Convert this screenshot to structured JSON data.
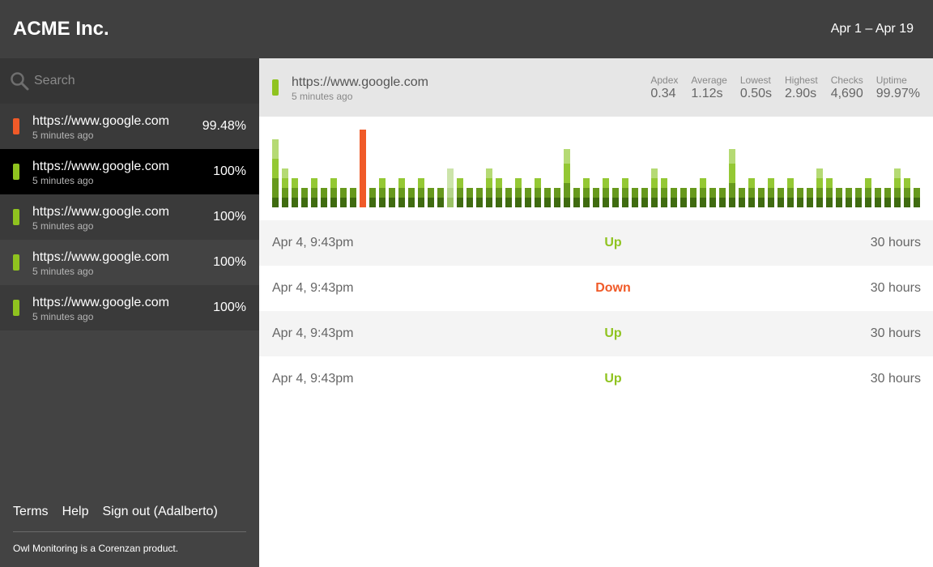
{
  "header": {
    "brand": "ACME Inc.",
    "date_range": "Apr 1 – Apr 19"
  },
  "search": {
    "placeholder": "Search",
    "value": ""
  },
  "sites": [
    {
      "url": "https://www.google.com",
      "updated": "5 minutes ago",
      "uptime": "99.48%",
      "status": "down",
      "active": false
    },
    {
      "url": "https://www.google.com",
      "updated": "5 minutes ago",
      "uptime": "100%",
      "status": "up",
      "active": true
    },
    {
      "url": "https://www.google.com",
      "updated": "5 minutes ago",
      "uptime": "100%",
      "status": "up",
      "active": false
    },
    {
      "url": "https://www.google.com",
      "updated": "5 minutes ago",
      "uptime": "100%",
      "status": "up",
      "active": false
    },
    {
      "url": "https://www.google.com",
      "updated": "5 minutes ago",
      "uptime": "100%",
      "status": "up",
      "active": false
    }
  ],
  "footer": {
    "links": {
      "terms": "Terms",
      "help": "Help",
      "signout": "Sign out (Adalberto)"
    },
    "note": "Owl Monitoring is a Corenzan product."
  },
  "detail": {
    "url": "https://www.google.com",
    "updated": "5 minutes ago",
    "status": "up",
    "stats": [
      {
        "label": "Apdex",
        "value": "0.34"
      },
      {
        "label": "Average",
        "value": "1.12s"
      },
      {
        "label": "Lowest",
        "value": "0.50s"
      },
      {
        "label": "Highest",
        "value": "2.90s"
      },
      {
        "label": "Checks",
        "value": "4,690"
      },
      {
        "label": "Uptime",
        "value": "99.97%"
      }
    ]
  },
  "events": [
    {
      "date": "Apr 4, 9:43pm",
      "status": "Up",
      "duration": "30 hours"
    },
    {
      "date": "Apr 4, 9:43pm",
      "status": "Down",
      "duration": "30 hours"
    },
    {
      "date": "Apr 4, 9:43pm",
      "status": "Up",
      "duration": "30 hours"
    },
    {
      "date": "Apr 4, 9:43pm",
      "status": "Up",
      "duration": "30 hours"
    }
  ],
  "colors": {
    "up": "#8fc31f",
    "down": "#f05a28",
    "segments": [
      "#3f6b10",
      "#67991d",
      "#94c834",
      "#b5da74"
    ],
    "faded": [
      "#9bc266",
      "#b4d48a",
      "#cce4aa",
      "#ddedc7"
    ]
  },
  "chart_data": {
    "type": "bar",
    "stacked": true,
    "grid": false,
    "legend": "none",
    "bars": [
      {
        "segments": [
          1,
          2,
          2,
          2
        ],
        "status": "up"
      },
      {
        "segments": [
          1,
          1,
          1,
          1
        ],
        "status": "up"
      },
      {
        "segments": [
          1,
          1,
          1
        ],
        "status": "up"
      },
      {
        "segments": [
          1,
          1
        ],
        "status": "up"
      },
      {
        "segments": [
          1,
          1,
          1
        ],
        "status": "up"
      },
      {
        "segments": [
          1,
          1
        ],
        "status": "up"
      },
      {
        "segments": [
          1,
          1,
          1
        ],
        "status": "up"
      },
      {
        "segments": [
          1,
          1
        ],
        "status": "up"
      },
      {
        "segments": [
          1,
          1
        ],
        "status": "up"
      },
      {
        "segments": [
          8
        ],
        "status": "down"
      },
      {
        "segments": [
          1,
          1
        ],
        "status": "up"
      },
      {
        "segments": [
          1,
          1,
          1
        ],
        "status": "up"
      },
      {
        "segments": [
          1,
          1
        ],
        "status": "up"
      },
      {
        "segments": [
          1,
          1,
          1
        ],
        "status": "up"
      },
      {
        "segments": [
          1,
          1
        ],
        "status": "up"
      },
      {
        "segments": [
          1,
          1,
          1
        ],
        "status": "up"
      },
      {
        "segments": [
          1,
          1
        ],
        "status": "up"
      },
      {
        "segments": [
          1,
          1
        ],
        "status": "up"
      },
      {
        "segments": [
          1,
          1,
          2
        ],
        "status": "faded"
      },
      {
        "segments": [
          1,
          1,
          1
        ],
        "status": "up"
      },
      {
        "segments": [
          1,
          1
        ],
        "status": "up"
      },
      {
        "segments": [
          1,
          1
        ],
        "status": "up"
      },
      {
        "segments": [
          1,
          1,
          1,
          1
        ],
        "status": "up"
      },
      {
        "segments": [
          1,
          1,
          1
        ],
        "status": "up"
      },
      {
        "segments": [
          1,
          1
        ],
        "status": "up"
      },
      {
        "segments": [
          1,
          1,
          1
        ],
        "status": "up"
      },
      {
        "segments": [
          1,
          1
        ],
        "status": "up"
      },
      {
        "segments": [
          1,
          1,
          1
        ],
        "status": "up"
      },
      {
        "segments": [
          1,
          1
        ],
        "status": "up"
      },
      {
        "segments": [
          1,
          1
        ],
        "status": "up"
      },
      {
        "segments": [
          1,
          1.5,
          2,
          1.5
        ],
        "status": "up"
      },
      {
        "segments": [
          1,
          1
        ],
        "status": "up"
      },
      {
        "segments": [
          1,
          1,
          1
        ],
        "status": "up"
      },
      {
        "segments": [
          1,
          1
        ],
        "status": "up"
      },
      {
        "segments": [
          1,
          1,
          1
        ],
        "status": "up"
      },
      {
        "segments": [
          1,
          1
        ],
        "status": "up"
      },
      {
        "segments": [
          1,
          1,
          1
        ],
        "status": "up"
      },
      {
        "segments": [
          1,
          1
        ],
        "status": "up"
      },
      {
        "segments": [
          1,
          1
        ],
        "status": "up"
      },
      {
        "segments": [
          1,
          1,
          1,
          1
        ],
        "status": "up"
      },
      {
        "segments": [
          1,
          1,
          1
        ],
        "status": "up"
      },
      {
        "segments": [
          1,
          1
        ],
        "status": "up"
      },
      {
        "segments": [
          1,
          1
        ],
        "status": "up"
      },
      {
        "segments": [
          1,
          1
        ],
        "status": "up"
      },
      {
        "segments": [
          1,
          1,
          1
        ],
        "status": "up"
      },
      {
        "segments": [
          1,
          1
        ],
        "status": "up"
      },
      {
        "segments": [
          1,
          1
        ],
        "status": "up"
      },
      {
        "segments": [
          1,
          1.5,
          2,
          1.5
        ],
        "status": "up"
      },
      {
        "segments": [
          1,
          1
        ],
        "status": "up"
      },
      {
        "segments": [
          1,
          1,
          1
        ],
        "status": "up"
      },
      {
        "segments": [
          1,
          1
        ],
        "status": "up"
      },
      {
        "segments": [
          1,
          1,
          1
        ],
        "status": "up"
      },
      {
        "segments": [
          1,
          1
        ],
        "status": "up"
      },
      {
        "segments": [
          1,
          1,
          1
        ],
        "status": "up"
      },
      {
        "segments": [
          1,
          1
        ],
        "status": "up"
      },
      {
        "segments": [
          1,
          1
        ],
        "status": "up"
      },
      {
        "segments": [
          1,
          1,
          1,
          1
        ],
        "status": "up"
      },
      {
        "segments": [
          1,
          1,
          1
        ],
        "status": "up"
      },
      {
        "segments": [
          1,
          1
        ],
        "status": "up"
      },
      {
        "segments": [
          1,
          1
        ],
        "status": "up"
      },
      {
        "segments": [
          1,
          1
        ],
        "status": "up"
      },
      {
        "segments": [
          1,
          1,
          1
        ],
        "status": "up"
      },
      {
        "segments": [
          1,
          1
        ],
        "status": "up"
      },
      {
        "segments": [
          1,
          1
        ],
        "status": "up"
      },
      {
        "segments": [
          1,
          1,
          1,
          1
        ],
        "status": "up"
      },
      {
        "segments": [
          1,
          1,
          1
        ],
        "status": "up"
      },
      {
        "segments": [
          1,
          1
        ],
        "status": "up"
      }
    ],
    "max_total": 8
  }
}
